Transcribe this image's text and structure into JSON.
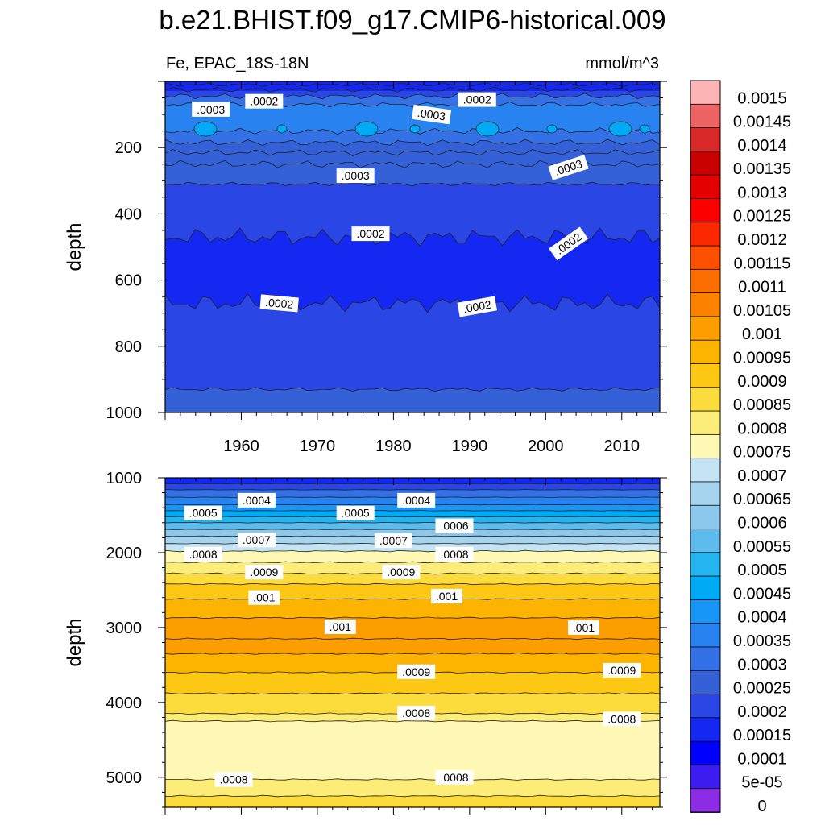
{
  "chart_data": {
    "type": "contour",
    "title": "b.e21.BHIST.f09_g17.CMIP6-historical.009",
    "variable_label": "Fe, EPAC_18S-18N",
    "units_label": "mmol/m^3",
    "colorbar": {
      "levels": [
        "0.0015",
        "0.00145",
        "0.0014",
        "0.00135",
        "0.0013",
        "0.00125",
        "0.0012",
        "0.00115",
        "0.0011",
        "0.00105",
        "0.001",
        "0.00095",
        "0.0009",
        "0.00085",
        "0.0008",
        "0.00075",
        "0.0007",
        "0.00065",
        "0.0006",
        "0.00055",
        "0.0005",
        "0.00045",
        "0.0004",
        "0.00035",
        "0.0003",
        "0.00025",
        "0.0002",
        "0.00015",
        "0.0001",
        "5e-05",
        "0"
      ],
      "colors": [
        "#fcb4b4",
        "#ec6464",
        "#d82828",
        "#c80000",
        "#e40000",
        "#fc0000",
        "#fc2800",
        "#fc5000",
        "#fc6e00",
        "#fc8200",
        "#fc9e00",
        "#fcb400",
        "#fcc814",
        "#fcdc3c",
        "#fcec78",
        "#fef8b4",
        "#c4e4f4",
        "#a6d4ee",
        "#8cc8ec",
        "#5ebcec",
        "#24b4f0",
        "#00aaf4",
        "#1896f8",
        "#2882f0",
        "#3470e6",
        "#3460d8",
        "#2a46e4",
        "#1428f2",
        "#0000fc",
        "#3c1cf0",
        "#8c2ce4"
      ]
    },
    "panels": [
      {
        "name": "upper",
        "ylabel": "depth",
        "ylim": [
          0,
          1000
        ],
        "yticks": [
          "200",
          "400",
          "600",
          "800",
          "1000"
        ],
        "xlim": [
          1950,
          2015
        ],
        "xticks": [
          "1960",
          "1970",
          "1980",
          "1990",
          "2000",
          "2010"
        ],
        "contour_labels": [
          {
            "text": ".0003",
            "year": 1956,
            "depth": 85
          },
          {
            "text": ".0002",
            "year": 1963,
            "depth": 60
          },
          {
            "text": ".0003",
            "year": 1985,
            "depth": 100
          },
          {
            "text": ".0002",
            "year": 1991,
            "depth": 55
          },
          {
            "text": ".0003",
            "year": 1975,
            "depth": 285
          },
          {
            "text": ".0003",
            "year": 2003,
            "depth": 260
          },
          {
            "text": ".0002",
            "year": 1977,
            "depth": 460
          },
          {
            "text": ".0002",
            "year": 2003,
            "depth": 490
          },
          {
            "text": ".0002",
            "year": 1965,
            "depth": 670
          },
          {
            "text": ".0002",
            "year": 1991,
            "depth": 680
          }
        ]
      },
      {
        "name": "lower",
        "ylabel": "depth",
        "ylim": [
          1000,
          5400
        ],
        "yticks": [
          "1000",
          "2000",
          "3000",
          "4000",
          "5000"
        ],
        "xlim": [
          1950,
          2015
        ],
        "contour_labels": [
          {
            "text": ".0004",
            "year": 1962,
            "depth": 1300
          },
          {
            "text": ".0004",
            "year": 1983,
            "depth": 1300
          },
          {
            "text": ".0005",
            "year": 1955,
            "depth": 1470
          },
          {
            "text": ".0005",
            "year": 1975,
            "depth": 1470
          },
          {
            "text": ".0006",
            "year": 1988,
            "depth": 1640
          },
          {
            "text": ".0007",
            "year": 1962,
            "depth": 1830
          },
          {
            "text": ".0007",
            "year": 1980,
            "depth": 1840
          },
          {
            "text": ".0008",
            "year": 1955,
            "depth": 2020
          },
          {
            "text": ".0008",
            "year": 1988,
            "depth": 2020
          },
          {
            "text": ".0009",
            "year": 1963,
            "depth": 2260
          },
          {
            "text": ".0009",
            "year": 1981,
            "depth": 2260
          },
          {
            "text": ".001",
            "year": 1963,
            "depth": 2600
          },
          {
            "text": ".001",
            "year": 1987,
            "depth": 2580
          },
          {
            "text": ".001",
            "year": 1973,
            "depth": 2990
          },
          {
            "text": ".001",
            "year": 2005,
            "depth": 3000
          },
          {
            "text": ".0009",
            "year": 1983,
            "depth": 3590
          },
          {
            "text": ".0009",
            "year": 2010,
            "depth": 3570
          },
          {
            "text": ".0008",
            "year": 1983,
            "depth": 4140
          },
          {
            "text": ".0008",
            "year": 2010,
            "depth": 4220
          },
          {
            "text": ".0008",
            "year": 1959,
            "depth": 5030
          },
          {
            "text": ".0008",
            "year": 1988,
            "depth": 5000
          }
        ]
      }
    ]
  }
}
